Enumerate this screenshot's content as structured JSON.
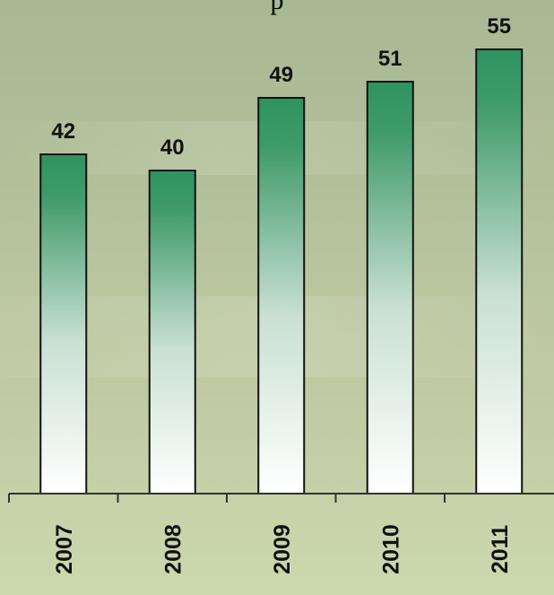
{
  "title_fragment": "p",
  "chart_data": {
    "type": "bar",
    "categories": [
      "2007",
      "2008",
      "2009",
      "2010",
      "2011"
    ],
    "values": [
      42,
      40,
      49,
      51,
      55
    ],
    "title": "",
    "xlabel": "",
    "ylabel": "",
    "ylim": [
      0,
      60
    ],
    "grid": false,
    "bar_gradient": [
      "#2e9360",
      "#ffffff"
    ],
    "bar_border": "#111111"
  }
}
